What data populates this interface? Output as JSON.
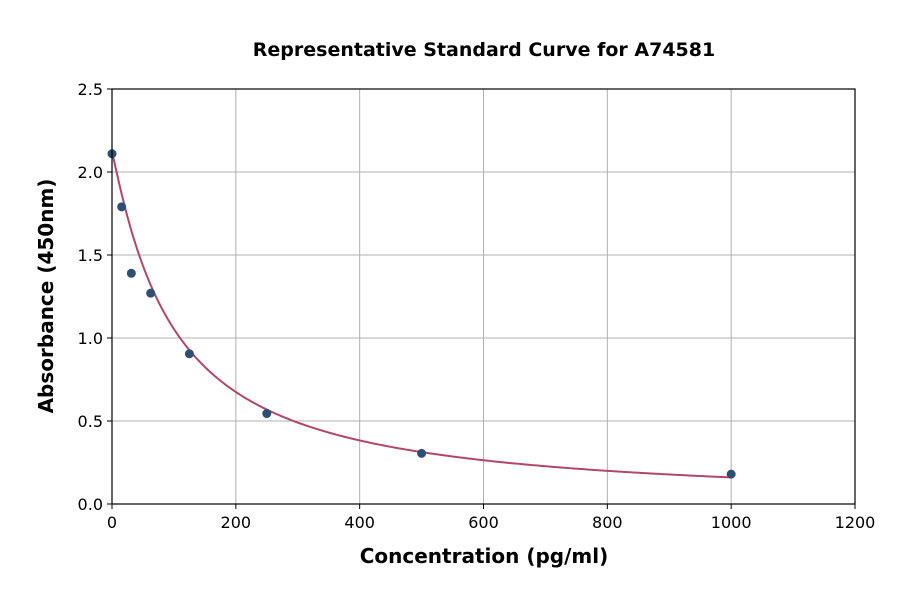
{
  "chart_data": {
    "type": "scatter",
    "title": "Representative Standard Curve for A74581",
    "xlabel": "Concentration (pg/ml)",
    "ylabel": "Absorbance (450nm)",
    "xlim": [
      0,
      1200
    ],
    "ylim": [
      0,
      2.5
    ],
    "xticks": [
      "0",
      "200",
      "400",
      "600",
      "800",
      "1000",
      "1200"
    ],
    "yticks": [
      "0.0",
      "0.5",
      "1.0",
      "1.5",
      "2.0",
      "2.5"
    ],
    "grid": true,
    "series": [
      {
        "x": [
          0,
          15.6,
          31.25,
          62.5,
          125,
          250,
          500,
          1000
        ],
        "y": [
          2.11,
          1.79,
          1.39,
          1.27,
          0.905,
          0.545,
          0.305,
          0.18
        ]
      }
    ],
    "fit_curve": true,
    "colors": {
      "points": "#2d4f73",
      "curve": "#b5466b",
      "grid": "#b0b0b0"
    }
  }
}
